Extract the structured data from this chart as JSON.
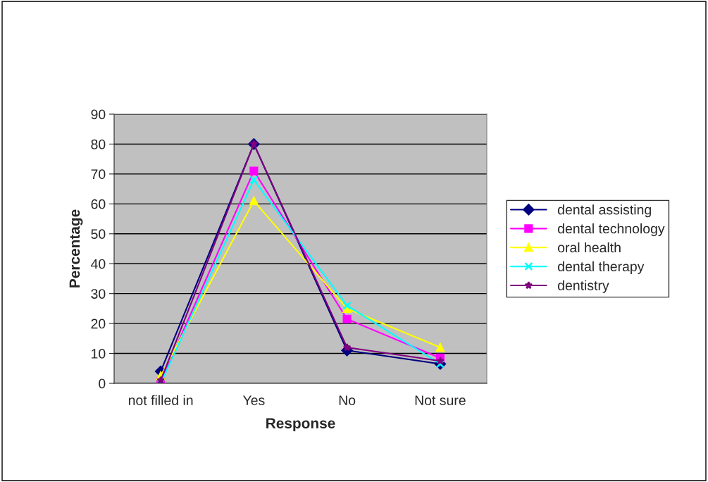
{
  "chart_data": {
    "type": "line",
    "xlabel": "Response",
    "ylabel": "Percentage",
    "categories": [
      "not filled in",
      "Yes",
      "No",
      "Not sure"
    ],
    "series": [
      {
        "name": "dental assisting",
        "color": "#000080",
        "marker": "diamond",
        "values": [
          4,
          80,
          11,
          6.5
        ]
      },
      {
        "name": "dental technology",
        "color": "#ff00ff",
        "marker": "square",
        "values": [
          0.5,
          71,
          21.5,
          8.5
        ]
      },
      {
        "name": "oral health",
        "color": "#ffff00",
        "marker": "triangle",
        "values": [
          2.5,
          61,
          25,
          12
        ]
      },
      {
        "name": "dental therapy",
        "color": "#00ffff",
        "marker": "cross",
        "values": [
          0,
          68,
          26,
          6.5
        ]
      },
      {
        "name": "dentistry",
        "color": "#800080",
        "marker": "star",
        "values": [
          1,
          80,
          12,
          7.5
        ]
      }
    ],
    "ylim": [
      0,
      90
    ],
    "yticks": [
      0,
      10,
      20,
      30,
      40,
      50,
      60,
      70,
      80,
      90
    ],
    "grid": "y",
    "legend": "right",
    "line_style": "solid"
  }
}
